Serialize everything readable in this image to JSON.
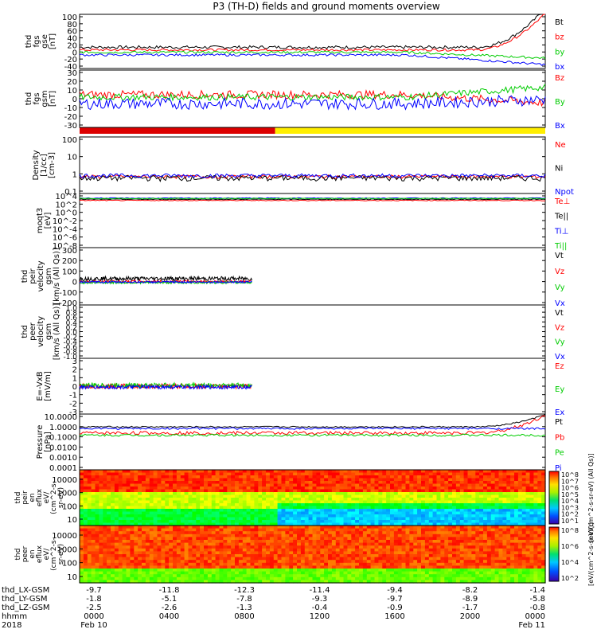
{
  "title": "P3 (TH-D) fields and ground moments overview",
  "chart_data": {
    "type": "line",
    "panels": [
      {
        "id": "fgs_gse",
        "ylabel": [
          "thd",
          "fgs",
          "gse",
          "[nT]"
        ],
        "ticks": [
          "100",
          "80",
          "60",
          "40",
          "20",
          "0",
          "-20",
          "-40"
        ],
        "ylim": [
          -40,
          100
        ],
        "series": [
          {
            "name": "Bt",
            "color": "#000000",
            "kind": "flat",
            "level": 15,
            "noise": 4,
            "endRise": 100
          },
          {
            "name": "bz",
            "color": "#ff0000",
            "kind": "flat",
            "level": 8,
            "noise": 3,
            "endRise": 95
          },
          {
            "name": "by",
            "color": "#00cc00",
            "kind": "flat",
            "level": 2,
            "noise": 3,
            "endDrift": -15
          },
          {
            "name": "bx",
            "color": "#0000ff",
            "kind": "flat",
            "level": -5,
            "noise": 3,
            "endDrift": -25
          }
        ]
      },
      {
        "id": "fgs_gsm",
        "ylabel": [
          "thd",
          "fgs",
          "gsm",
          "[nT]"
        ],
        "ticks": [
          "30",
          "20",
          "10",
          "0",
          "-10",
          "-20",
          "-30"
        ],
        "ylim": [
          -35,
          35
        ],
        "series": [
          {
            "name": "Bz",
            "color": "#ff0000",
            "kind": "flat",
            "level": 5,
            "noise": 5,
            "endDrift": -10
          },
          {
            "name": "By",
            "color": "#00cc00",
            "kind": "flat",
            "level": 2,
            "noise": 4,
            "endDrift": 12
          },
          {
            "name": "Bx",
            "color": "#0000ff",
            "kind": "flat",
            "level": -6,
            "noise": 7,
            "endDrift": 5
          }
        ]
      },
      {
        "id": "density",
        "ylabel": [
          "Density",
          "[1/cc]",
          "[cm-3]"
        ],
        "ticks": [
          "100",
          "10",
          "1",
          "0.1"
        ],
        "ylim": [
          0.05,
          200
        ],
        "log": true,
        "series": [
          {
            "name": "Ne",
            "color": "#ff0000",
            "kind": "flat",
            "level": 0.6,
            "noise": 0.15
          },
          {
            "name": "Ni",
            "color": "#000000",
            "kind": "flat",
            "level": 0.5,
            "noise": 0.2
          },
          {
            "name": "Npot",
            "color": "#0000ff",
            "kind": "flat",
            "level": 0.7,
            "noise": 0.2
          }
        ]
      },
      {
        "id": "temperature",
        "ylabel": [
          "moqt3",
          "[eV]"
        ],
        "ticks": [
          "10^4",
          "10^2",
          "10^0",
          "10^-2",
          "10^-4",
          "10^-6",
          "10^-8"
        ],
        "ylim": [
          -9,
          5
        ],
        "series": [
          {
            "name": "Te⊥",
            "color": "#ff0000",
            "kind": "flat",
            "level": 3.2,
            "noise": 0.1
          },
          {
            "name": "Te||",
            "color": "#000000",
            "kind": "flat",
            "level": 3.5,
            "noise": 0.1
          },
          {
            "name": "Ti⊥",
            "color": "#0000ff",
            "kind": "flat",
            "level": 3.8,
            "noise": 0.1
          },
          {
            "name": "Ti||",
            "color": "#00cc00",
            "kind": "flat",
            "level": 3.7,
            "noise": 0.1
          }
        ]
      },
      {
        "id": "peir_velocity",
        "ylabel": [
          "thd",
          "peir",
          "velocity",
          "gsm",
          "[km/s (All Qs)]"
        ],
        "ticks": [
          "300",
          "200",
          "100",
          "0",
          "-100",
          "-200"
        ],
        "ylim": [
          -200,
          300
        ],
        "xEndFrac": 0.37,
        "series": [
          {
            "name": "Vt",
            "color": "#000000",
            "kind": "flat",
            "level": 30,
            "noise": 18
          },
          {
            "name": "Vz",
            "color": "#ff0000",
            "kind": "flat",
            "level": 5,
            "noise": 10
          },
          {
            "name": "Vy",
            "color": "#00cc00",
            "kind": "flat",
            "level": -5,
            "noise": 10
          },
          {
            "name": "Vx",
            "color": "#0000ff",
            "kind": "flat",
            "level": 0,
            "noise": 8
          }
        ]
      },
      {
        "id": "peer_velocity",
        "ylabel": [
          "thd",
          "peer",
          "velocity",
          "gsm",
          "[km/s (All Qs)]"
        ],
        "ticks": [
          "1.0",
          "0.8",
          "0.6",
          "0.4",
          "0.2",
          "0.0",
          "-0.2",
          "-0.4",
          "-0.6",
          "-0.8",
          "-1.0"
        ],
        "ylim": [
          -1,
          1
        ],
        "series": [
          {
            "name": "Vt",
            "color": "#000000",
            "kind": "none"
          },
          {
            "name": "Vz",
            "color": "#ff0000",
            "kind": "none"
          },
          {
            "name": "Vy",
            "color": "#00cc00",
            "kind": "none"
          },
          {
            "name": "Vx",
            "color": "#0000ff",
            "kind": "none"
          }
        ]
      },
      {
        "id": "efield",
        "ylabel": [
          "E=-VxB",
          "[mV/m]"
        ],
        "ticks": [
          "3",
          "2",
          "1",
          "0",
          "-1",
          "-2",
          "-3"
        ],
        "ylim": [
          -3,
          3
        ],
        "xEndFrac": 0.37,
        "series": [
          {
            "name": "Ez",
            "color": "#ff0000",
            "kind": "flat",
            "level": 0,
            "noise": 0.25
          },
          {
            "name": "Ey",
            "color": "#00cc00",
            "kind": "flat",
            "level": 0.1,
            "noise": 0.25
          },
          {
            "name": "Ex",
            "color": "#0000ff",
            "kind": "flat",
            "level": -0.1,
            "noise": 0.2
          }
        ]
      },
      {
        "id": "pressure",
        "ylabel": [
          "Pressure",
          "[nPa]"
        ],
        "ticks": [
          "10.0000",
          "1.0000",
          "0.1000",
          "0.0100",
          "0.0010",
          "0.0001"
        ],
        "ylim": [
          -4,
          1
        ],
        "series": [
          {
            "name": "Pt",
            "color": "#000000",
            "kind": "flat",
            "level": -0.15,
            "noise": 0.06,
            "endRise": 1.1
          },
          {
            "name": "Pb",
            "color": "#ff0000",
            "kind": "flat",
            "level": -0.7,
            "noise": 0.15,
            "endRise": 1.6
          },
          {
            "name": "Pe",
            "color": "#00cc00",
            "kind": "flat",
            "level": -0.9,
            "noise": 0.1
          },
          {
            "name": "Pi",
            "color": "#0000ff",
            "kind": "flat",
            "level": -0.3,
            "noise": 0.08
          }
        ]
      }
    ],
    "spectrograms": [
      {
        "id": "peir_en_eflux",
        "ylabel": [
          "thd",
          "peir",
          "en",
          "eflux",
          "eV/",
          "(cm^2-s-",
          "sr-eV)"
        ],
        "ticks": [
          "10000",
          "1000",
          "100",
          "10"
        ],
        "cbar_ticks": [
          "10^8",
          "10^7",
          "10^6",
          "10^5",
          "10^4",
          "10^3",
          "10^2",
          "10^1"
        ],
        "cbar_label": "[eV/(cm^2-s-sr-eV) (All Qs)]"
      },
      {
        "id": "peer_en_eflux",
        "ylabel": [
          "thd",
          "peer",
          "en",
          "eflux",
          "eV/",
          "(cm^2-s-",
          "sr-eV)"
        ],
        "ticks": [
          "10000",
          "1000",
          "100",
          "10"
        ],
        "cbar_ticks": [
          "10^8",
          "10^6",
          "10^4",
          "10^2"
        ],
        "cbar_label": "[eV/(cm^2-s-sr-eV)]"
      }
    ],
    "x_axis": {
      "row_labels": [
        "thd_LX-GSM",
        "thd_LY-GSM",
        "thd_LZ-GSM",
        "hhmm",
        "2018"
      ],
      "columns": [
        [
          "-9.7",
          "-1.8",
          "-2.5",
          "0000",
          "Feb 10"
        ],
        [
          "-11.8",
          "-5.1",
          "-2.6",
          "0400",
          ""
        ],
        [
          "-12.3",
          "-7.8",
          "-1.3",
          "0800",
          ""
        ],
        [
          "-11.4",
          "-9.3",
          "-0.4",
          "1200",
          ""
        ],
        [
          "-9.4",
          "-9.7",
          "-0.9",
          "1600",
          ""
        ],
        [
          "-8.2",
          "-8.9",
          "-1.7",
          "2000",
          ""
        ],
        [
          "-1.4",
          "-5.8",
          "-0.8",
          "0000",
          "Feb 11"
        ]
      ]
    },
    "mode_bar": [
      {
        "color": "#dd0000",
        "from": 0.0,
        "to": 0.42
      },
      {
        "color": "#ffee00",
        "from": 0.42,
        "to": 1.0
      }
    ]
  }
}
